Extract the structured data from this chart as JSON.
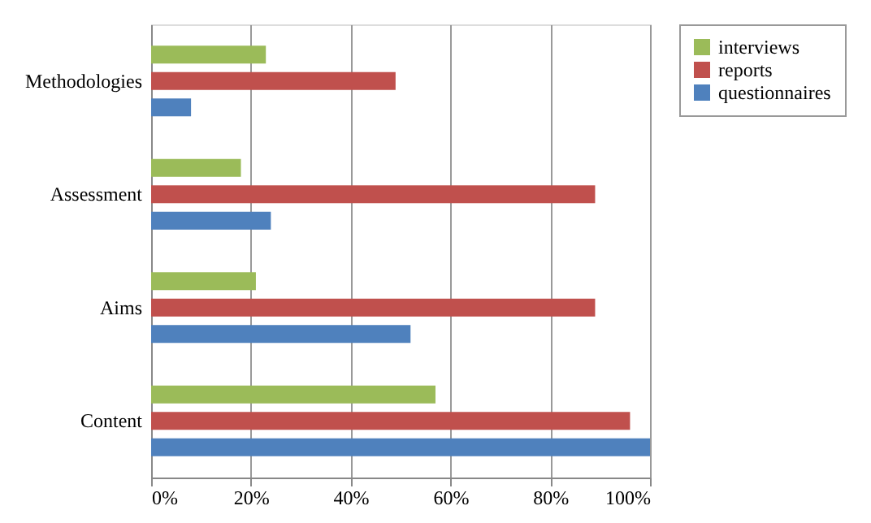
{
  "chart_data": {
    "type": "bar",
    "orientation": "horizontal",
    "categories": [
      "Methodologies",
      "Assessment",
      "Aims",
      "Content"
    ],
    "series": [
      {
        "name": "interviews",
        "color": "#9bbb59",
        "values": [
          23,
          18,
          21,
          57
        ]
      },
      {
        "name": "reports",
        "color": "#c0504d",
        "values": [
          49,
          89,
          89,
          96
        ]
      },
      {
        "name": "questionnaires",
        "color": "#4f81bd",
        "values": [
          8,
          24,
          52,
          100
        ]
      }
    ],
    "xlim": [
      0,
      100
    ],
    "xticks": [
      {
        "value": 0,
        "label": "0%"
      },
      {
        "value": 20,
        "label": "20%"
      },
      {
        "value": 40,
        "label": "40%"
      },
      {
        "value": 60,
        "label": "60%"
      },
      {
        "value": 80,
        "label": "80%"
      },
      {
        "value": 100,
        "label": "100%"
      }
    ],
    "grid": "x",
    "legend": "right"
  }
}
